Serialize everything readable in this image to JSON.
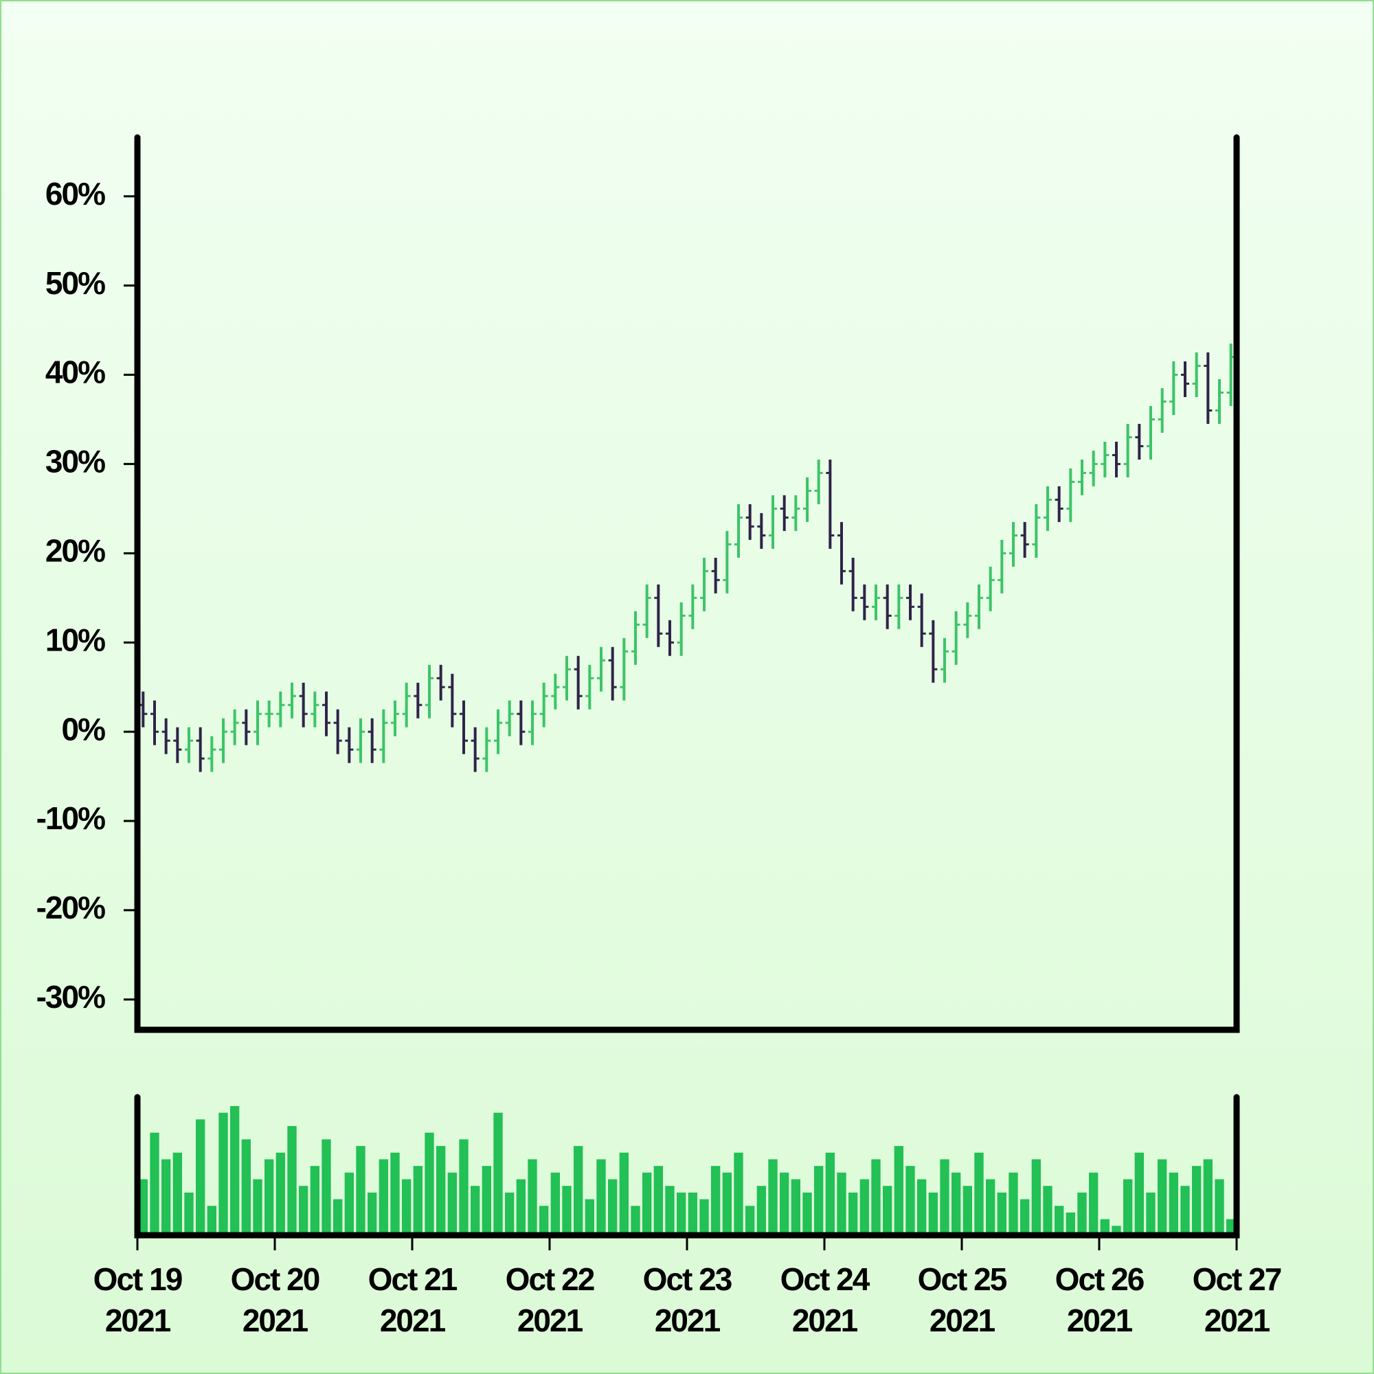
{
  "chart_data": {
    "type": "ohlc",
    "up_color": "#3cc468",
    "down_color": "#2e2448",
    "volume_color": "#22c055",
    "ylim": [
      -33.4,
      66.6
    ],
    "yticks": [
      {
        "value": -30,
        "label": "-30%"
      },
      {
        "value": -20,
        "label": "-20%"
      },
      {
        "value": -10,
        "label": "-10%"
      },
      {
        "value": 0,
        "label": "0%"
      },
      {
        "value": 10,
        "label": "10%"
      },
      {
        "value": 20,
        "label": "20%"
      },
      {
        "value": 30,
        "label": "30%"
      },
      {
        "value": 40,
        "label": "40%"
      },
      {
        "value": 50,
        "label": "50%"
      },
      {
        "value": 60,
        "label": "60%"
      }
    ],
    "xlim": [
      "2021-10-19",
      "2021-10-27"
    ],
    "xticks": [
      {
        "value": "2021-10-19",
        "label": [
          "Oct 19",
          "2021"
        ]
      },
      {
        "value": "2021-10-20",
        "label": [
          "Oct 20",
          "2021"
        ]
      },
      {
        "value": "2021-10-21",
        "label": [
          "Oct 21",
          "2021"
        ]
      },
      {
        "value": "2021-10-22",
        "label": [
          "Oct 22",
          "2021"
        ]
      },
      {
        "value": "2021-10-23",
        "label": [
          "Oct 23",
          "2021"
        ]
      },
      {
        "value": "2021-10-24",
        "label": [
          "Oct 24",
          "2021"
        ]
      },
      {
        "value": "2021-10-25",
        "label": [
          "Oct 25",
          "2021"
        ]
      },
      {
        "value": "2021-10-26",
        "label": [
          "Oct 26",
          "2021"
        ]
      },
      {
        "value": "2021-10-27",
        "label": [
          "Oct 27",
          "2021"
        ]
      }
    ],
    "x": [
      "2021-10-19T00:00",
      "2021-10-19T02:00",
      "2021-10-19T04:00",
      "2021-10-19T06:00",
      "2021-10-19T08:00",
      "2021-10-19T10:00",
      "2021-10-19T12:00",
      "2021-10-19T14:00",
      "2021-10-19T16:00",
      "2021-10-19T18:00",
      "2021-10-19T20:00",
      "2021-10-19T22:00",
      "2021-10-20T00:00",
      "2021-10-20T02:00",
      "2021-10-20T04:00",
      "2021-10-20T06:00",
      "2021-10-20T08:00",
      "2021-10-20T10:00",
      "2021-10-20T12:00",
      "2021-10-20T14:00",
      "2021-10-20T16:00",
      "2021-10-20T18:00",
      "2021-10-20T20:00",
      "2021-10-20T22:00",
      "2021-10-21T00:00",
      "2021-10-21T02:00",
      "2021-10-21T04:00",
      "2021-10-21T06:00",
      "2021-10-21T08:00",
      "2021-10-21T10:00",
      "2021-10-21T12:00",
      "2021-10-21T14:00",
      "2021-10-21T16:00",
      "2021-10-21T18:00",
      "2021-10-21T20:00",
      "2021-10-21T22:00",
      "2021-10-22T00:00",
      "2021-10-22T02:00",
      "2021-10-22T04:00",
      "2021-10-22T06:00",
      "2021-10-22T08:00",
      "2021-10-22T10:00",
      "2021-10-22T12:00",
      "2021-10-22T14:00",
      "2021-10-22T16:00",
      "2021-10-22T18:00",
      "2021-10-22T20:00",
      "2021-10-22T22:00",
      "2021-10-23T00:00",
      "2021-10-23T02:00",
      "2021-10-23T04:00",
      "2021-10-23T06:00",
      "2021-10-23T08:00",
      "2021-10-23T10:00",
      "2021-10-23T12:00",
      "2021-10-23T14:00",
      "2021-10-23T16:00",
      "2021-10-23T18:00",
      "2021-10-23T20:00",
      "2021-10-23T22:00",
      "2021-10-24T00:00",
      "2021-10-24T02:00",
      "2021-10-24T04:00",
      "2021-10-24T06:00",
      "2021-10-24T08:00",
      "2021-10-24T10:00",
      "2021-10-24T12:00",
      "2021-10-24T14:00",
      "2021-10-24T16:00",
      "2021-10-24T18:00",
      "2021-10-24T20:00",
      "2021-10-24T22:00",
      "2021-10-25T00:00",
      "2021-10-25T02:00",
      "2021-10-25T04:00",
      "2021-10-25T06:00",
      "2021-10-25T08:00",
      "2021-10-25T10:00",
      "2021-10-25T12:00",
      "2021-10-25T14:00",
      "2021-10-25T16:00",
      "2021-10-25T18:00",
      "2021-10-25T20:00",
      "2021-10-25T22:00",
      "2021-10-26T00:00",
      "2021-10-26T02:00",
      "2021-10-26T04:00",
      "2021-10-26T06:00",
      "2021-10-26T08:00",
      "2021-10-26T10:00",
      "2021-10-26T12:00",
      "2021-10-26T14:00",
      "2021-10-26T16:00",
      "2021-10-26T18:00",
      "2021-10-26T20:00",
      "2021-10-26T22:00"
    ],
    "open": [
      3,
      2,
      0,
      -1,
      -2,
      -1,
      -3,
      -2,
      0,
      1,
      0,
      2,
      2,
      3,
      4,
      2,
      3,
      1,
      -1,
      -2,
      0,
      -2,
      1,
      2,
      4,
      3,
      6,
      5,
      2,
      -1,
      -3,
      -1,
      1,
      2,
      0,
      2,
      4,
      5,
      7,
      4,
      6,
      8,
      5,
      9,
      12,
      15,
      11,
      10,
      13,
      15,
      18,
      17,
      21,
      24,
      23,
      22,
      25,
      24,
      25,
      27,
      29,
      22,
      18,
      15,
      14,
      15,
      13,
      15,
      14,
      11,
      7,
      9,
      12,
      13,
      15,
      17,
      20,
      22,
      21,
      24,
      26,
      25,
      28,
      29,
      30,
      31,
      30,
      33,
      32,
      35,
      37,
      40,
      39,
      41,
      36,
      38
    ],
    "high": [
      4.5,
      3.5,
      1.5,
      0.5,
      0.5,
      0.5,
      -0.5,
      1.5,
      2.5,
      2.5,
      3.5,
      3.5,
      4.5,
      5.5,
      5.5,
      4.5,
      4.5,
      2.5,
      0.5,
      1.5,
      1.5,
      2.5,
      3.5,
      5.5,
      5.5,
      7.5,
      7.5,
      6.5,
      3.5,
      0.5,
      0.5,
      2.5,
      3.5,
      3.5,
      3.5,
      5.5,
      6.5,
      8.5,
      8.5,
      7.5,
      9.5,
      9.5,
      10.5,
      13.5,
      16.5,
      16.5,
      12.5,
      14.5,
      16.5,
      19.5,
      19.5,
      22.5,
      25.5,
      25.5,
      24.5,
      26.5,
      26.5,
      26.5,
      28.5,
      30.5,
      30.5,
      23.5,
      19.5,
      16.5,
      16.5,
      16.5,
      16.5,
      16.5,
      15.5,
      12.5,
      10.5,
      13.5,
      14.5,
      16.5,
      18.5,
      21.5,
      23.5,
      23.5,
      25.5,
      27.5,
      27.5,
      29.5,
      30.5,
      31.5,
      32.5,
      32.5,
      34.5,
      34.5,
      36.5,
      38.5,
      41.5,
      41.5,
      42.5,
      42.5,
      39.5,
      43.5
    ],
    "low": [
      0.5,
      -1.5,
      -2.5,
      -3.5,
      -3.5,
      -4.5,
      -4.5,
      -3.5,
      -1.5,
      -1.5,
      -1.5,
      0.5,
      0.5,
      1.5,
      0.5,
      0.5,
      -0.5,
      -2.5,
      -3.5,
      -3.5,
      -3.5,
      -3.5,
      -0.5,
      0.5,
      1.5,
      1.5,
      3.5,
      0.5,
      -2.5,
      -4.5,
      -4.5,
      -2.5,
      -0.5,
      -1.5,
      -1.5,
      0.5,
      2.5,
      3.5,
      2.5,
      2.5,
      4.5,
      3.5,
      3.5,
      7.5,
      10.5,
      9.5,
      8.5,
      8.5,
      11.5,
      13.5,
      15.5,
      15.5,
      19.5,
      21.5,
      20.5,
      20.5,
      22.5,
      22.5,
      23.5,
      25.5,
      20.5,
      16.5,
      13.5,
      12.5,
      12.5,
      11.5,
      11.5,
      12.5,
      9.5,
      5.5,
      5.5,
      7.5,
      10.5,
      11.5,
      13.5,
      15.5,
      18.5,
      19.5,
      19.5,
      22.5,
      23.5,
      23.5,
      26.5,
      27.5,
      28.5,
      28.5,
      28.5,
      30.5,
      30.5,
      33.5,
      35.5,
      37.5,
      37.5,
      34.5,
      34.5,
      36.5
    ],
    "close": [
      2,
      0,
      -1,
      -2,
      -1,
      -3,
      -2,
      0,
      1,
      0,
      2,
      2,
      3,
      4,
      2,
      3,
      1,
      -1,
      -2,
      0,
      -2,
      1,
      2,
      4,
      3,
      6,
      5,
      2,
      -1,
      -3,
      -1,
      1,
      2,
      0,
      2,
      4,
      5,
      7,
      4,
      6,
      8,
      5,
      9,
      12,
      15,
      11,
      10,
      13,
      15,
      18,
      17,
      21,
      24,
      23,
      22,
      25,
      24,
      25,
      27,
      29,
      22,
      18,
      15,
      14,
      15,
      13,
      15,
      14,
      11,
      7,
      9,
      12,
      13,
      15,
      17,
      20,
      22,
      21,
      24,
      26,
      25,
      28,
      29,
      30,
      31,
      30,
      33,
      32,
      35,
      37,
      40,
      39,
      41,
      36,
      38,
      42
    ],
    "volume": [
      40,
      75,
      55,
      60,
      30,
      85,
      20,
      90,
      95,
      70,
      40,
      55,
      60,
      80,
      35,
      50,
      70,
      25,
      45,
      65,
      30,
      55,
      60,
      40,
      50,
      75,
      65,
      45,
      70,
      35,
      50,
      90,
      30,
      40,
      55,
      20,
      45,
      35,
      65,
      25,
      55,
      40,
      60,
      20,
      45,
      50,
      35,
      30,
      30,
      25,
      50,
      45,
      60,
      20,
      35,
      55,
      45,
      40,
      30,
      50,
      60,
      45,
      30,
      40,
      55,
      35,
      65,
      50,
      40,
      30,
      55,
      45,
      35,
      60,
      40,
      30,
      45,
      25,
      55,
      35,
      20,
      15,
      30,
      45,
      10,
      5,
      40,
      60,
      30,
      55,
      45,
      35,
      50,
      55,
      40,
      10
    ]
  }
}
